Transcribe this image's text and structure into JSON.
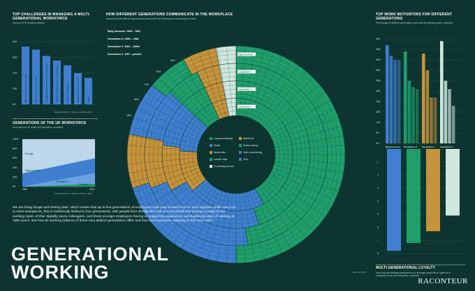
{
  "colors": {
    "bg": "#0c3530",
    "green": "#1f9e6b",
    "blue": "#3f7fd0",
    "orange": "#c6923a",
    "pale": "#cfe6dc",
    "white": "#ffffff"
  },
  "challenges": {
    "title": "Top challenges in managing a multi-generational workforce",
    "subtitle": "Survey of HR decision-makers",
    "source": "Randstad/Office for National Statistics 2017",
    "chart_data": {
      "type": "bar",
      "title": "Top challenges in managing a multi-generational workforce",
      "ylim": [
        0,
        40
      ],
      "yticks": [
        "40%",
        "30%",
        "20%",
        "10%",
        "0%"
      ],
      "categories": [
        "Differences in communication styles",
        "Differences in attitude to working",
        "Managing across the generational technology gap",
        "Difference in expectations of career progression",
        "Integration of generations",
        "Managing conflicts and tensions",
        "Difficulty"
      ],
      "values": [
        37,
        35,
        31,
        28,
        25,
        20,
        17
      ]
    }
  },
  "uk_workforce": {
    "title": "Generations of the UK workforce",
    "subtitle": "Proportion of UK adults by generation combined",
    "source": "Randstad/Office for National Statistics 2017",
    "chart_data": {
      "type": "area",
      "title": "Generations of the UK workforce",
      "x": [
        "1980",
        "2016"
      ],
      "ylim": [
        0,
        100
      ],
      "yticks": [
        "100%",
        "80%",
        "60%",
        "40%",
        "20%",
        "0%"
      ],
      "series": [
        {
          "name": "Pre-age",
          "values": [
            72,
            40
          ]
        },
        {
          "name": "Baby boomers",
          "values": [
            28,
            32
          ]
        },
        {
          "name": "Generation X",
          "values": [
            0,
            22
          ]
        },
        {
          "name": "Generation Y",
          "values": [
            0,
            6
          ]
        }
      ]
    }
  },
  "communicate": {
    "title": "How different generations communicate in the workplace",
    "subtitle": "Amount of time different generations spend with the following communications at work",
    "generations": [
      {
        "label": "Baby boomers: 1946 – 1964"
      },
      {
        "label": "Generation X: 1965 – 1980"
      },
      {
        "label": "Generation Y: 1981 – 1996s"
      },
      {
        "label": "Generation Z: 1997 - present"
      }
    ],
    "ring_labels": [
      "Baby boomers",
      "Generation X",
      "Generation Y",
      "Generation Z"
    ],
    "scale_labels": [
      "50%",
      "60%",
      "70%",
      "80%",
      "90%"
    ],
    "legend": [
      {
        "label": "In-person meetings",
        "color": "#1f9e6b"
      },
      {
        "label": "Mobile text",
        "color": "#c6923a"
      },
      {
        "label": "Emails",
        "color": "#3f7fd0"
      },
      {
        "label": "Screen sharing",
        "color": "#1f9e6b"
      },
      {
        "label": "Mobile calls",
        "color": "#c6923a"
      },
      {
        "label": "Video conferencing",
        "color": "#3f7fd0"
      },
      {
        "label": "Landline calls",
        "color": "#1f9e6b"
      },
      {
        "label": "Chat",
        "color": "#3f7fd0"
      },
      {
        "label": "Co-working services",
        "color": "#ffffff"
      }
    ],
    "source": "Microsoft 2016",
    "chart_data": {
      "type": "pie",
      "title": "How different generations communicate in the workplace",
      "rings": [
        "Baby boomers",
        "Generation X",
        "Generation Y",
        "Generation Z"
      ],
      "categories": [
        "In-person meetings",
        "Emails",
        "Mobile text",
        "Chat",
        "Mobile calls",
        "Landline calls",
        "Video conferencing"
      ],
      "series": [
        {
          "name": "Baby boomers",
          "values": [
            50,
            20,
            8,
            8,
            6,
            5,
            3
          ]
        },
        {
          "name": "Generation X",
          "values": [
            48,
            21,
            9,
            9,
            6,
            4,
            3
          ]
        },
        {
          "name": "Generation Y",
          "values": [
            45,
            22,
            10,
            10,
            6,
            4,
            3
          ]
        },
        {
          "name": "Generation Z",
          "values": [
            42,
            22,
            12,
            11,
            6,
            4,
            3
          ]
        }
      ]
    }
  },
  "motivators": {
    "title": "Top work motivators for different generations",
    "subtitle": "Percentage of different generations who said the following were important",
    "groups": [
      "Baby boomers",
      "Generation X",
      "Generation Y",
      "Generation Z"
    ],
    "chart_data": {
      "type": "bar",
      "title": "Top work motivators for different generations",
      "ylim": [
        0,
        50
      ],
      "yticks": [
        "50%",
        "45%",
        "40%",
        "35%",
        "30%",
        "25%",
        "20%",
        "15%",
        "10%",
        "5%",
        "0%"
      ],
      "series": [
        {
          "name": "Baby boomers",
          "values": [
            47,
            42,
            40,
            40
          ]
        },
        {
          "name": "Generation X",
          "values": [
            44,
            30,
            27,
            26
          ]
        },
        {
          "name": "Generation Y",
          "values": [
            43,
            35,
            22,
            22
          ]
        },
        {
          "name": "Generation Z",
          "values": [
            49,
            30,
            26,
            18
          ]
        }
      ]
    }
  },
  "loyalty": {
    "title": "Multi-generational loyalty",
    "subtitle": "How long the following generations on average would like to spend at a company in any one role/years combined",
    "chart_data": {
      "type": "bar",
      "title": "Multi-generational loyalty",
      "categories": [
        "Baby boomers",
        "Generation X",
        "Generation Y",
        "Generation Z"
      ],
      "values": [
        7.8,
        7.2,
        6.3,
        5.1
      ],
      "ylim": [
        0,
        8
      ],
      "yticks": [
        "1",
        "2",
        "3",
        "4",
        "5",
        "6",
        "7",
        "8"
      ]
    }
  },
  "intro": "We are living longer and retiring later, which means that up to five generations of employees now have to learn how to work together under one roof. In most workplaces, this is realistically limited to four generations, with people born shortly after the Second World War having to adapt to the working styles of their digitally savvy colleagues, and those younger employees having to respect the experience and traditional ways of working of older peers. But how do working patterns of these very distinct generations differ and how are businesses adapting to this new norm?",
  "title_line1": "GENERATIONAL",
  "title_line2": "WORKING",
  "brand": "RACONTEUR"
}
